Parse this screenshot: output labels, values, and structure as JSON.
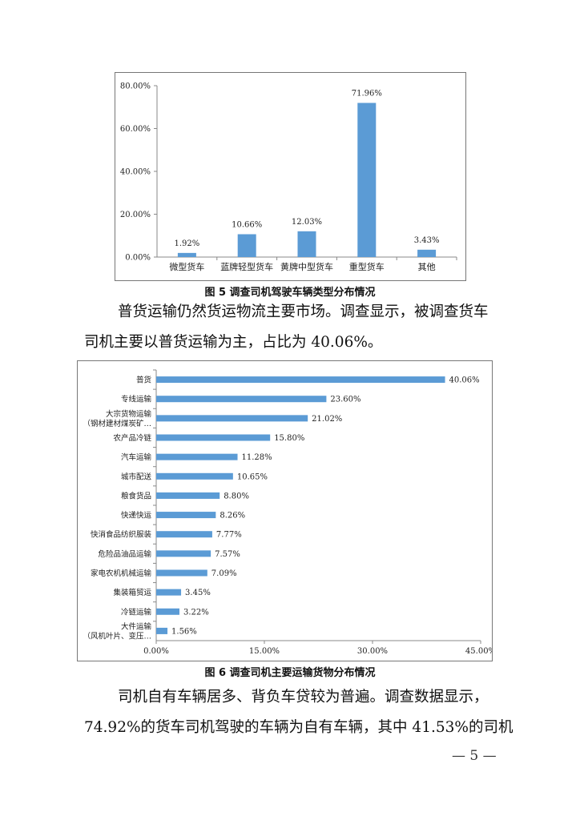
{
  "figure5": {
    "caption": "图 5 调查司机驾驶车辆类型分布情况",
    "chart_data": {
      "type": "bar",
      "categories": [
        "微型货车",
        "蓝牌轻型货车",
        "黄牌中型货车",
        "重型货车",
        "其他"
      ],
      "values": [
        1.92,
        10.66,
        12.03,
        71.96,
        3.43
      ],
      "value_labels": [
        "1.92%",
        "10.66%",
        "12.03%",
        "71.96%",
        "3.43%"
      ],
      "ylim": [
        0,
        80
      ],
      "y_ticks": [
        "0.00%",
        "20.00%",
        "40.00%",
        "60.00%",
        "80.00%"
      ],
      "bar_color": "#5b9bd5"
    }
  },
  "paragraph1": {
    "line1": "普货运输仍然货运物流主要市场。调查显示，被调查货车",
    "line2": "司机主要以普货运输为主，占比为 40.06%。"
  },
  "figure6": {
    "caption": "图 6 调查司机主要运输货物分布情况",
    "chart_data": {
      "type": "bar",
      "orientation": "horizontal",
      "categories": [
        [
          "普货"
        ],
        [
          "专线运输"
        ],
        [
          "大宗货物运输",
          "（钢材建材煤炭矿…"
        ],
        [
          "农产品冷链"
        ],
        [
          "汽车运输"
        ],
        [
          "城市配送"
        ],
        [
          "粮食货品"
        ],
        [
          "快递快运"
        ],
        [
          "快消食品纺织服装"
        ],
        [
          "危险品油品运输"
        ],
        [
          "家电农机机械运输"
        ],
        [
          "集装箱贸运"
        ],
        [
          "冷链运输"
        ],
        [
          "大件运输",
          "（风机叶片、变压…"
        ]
      ],
      "values": [
        40.06,
        23.6,
        21.02,
        15.8,
        11.28,
        10.65,
        8.8,
        8.26,
        7.77,
        7.57,
        7.09,
        3.45,
        3.22,
        1.56
      ],
      "value_labels": [
        "40.06%",
        "23.60%",
        "21.02%",
        "15.80%",
        "11.28%",
        "10.65%",
        "8.80%",
        "8.26%",
        "7.77%",
        "7.57%",
        "7.09%",
        "3.45%",
        "3.22%",
        "1.56%"
      ],
      "xlim": [
        0,
        45
      ],
      "x_ticks": [
        "0.00%",
        "15.00%",
        "30.00%",
        "45.00%"
      ],
      "bar_color": "#5b9bd5"
    }
  },
  "paragraph2": {
    "line1": "司机自有车辆居多、背负车贷较为普遍。调查数据显示，",
    "line2": "74.92%的货车司机驾驶的车辆为自有车辆，其中 41.53%的司机"
  },
  "page_number": "— 5 —"
}
